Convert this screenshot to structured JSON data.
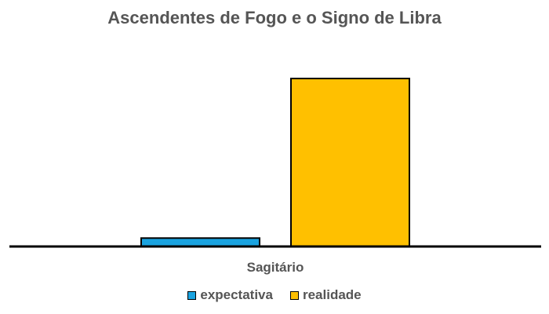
{
  "chart_data": {
    "type": "bar",
    "title": "Ascendentes de Fogo e o Signo de Libra",
    "categories": [
      "Sagitário"
    ],
    "series": [
      {
        "name": "expectativa",
        "values": [
          5
        ],
        "color": "#1AA3E0"
      },
      {
        "name": "realidade",
        "values": [
          100
        ],
        "color": "#FFC000"
      }
    ],
    "ylim": [
      0,
      100
    ],
    "grid": false,
    "legend": "bottom",
    "axis_color": "#000000",
    "text_color": "#555555"
  }
}
